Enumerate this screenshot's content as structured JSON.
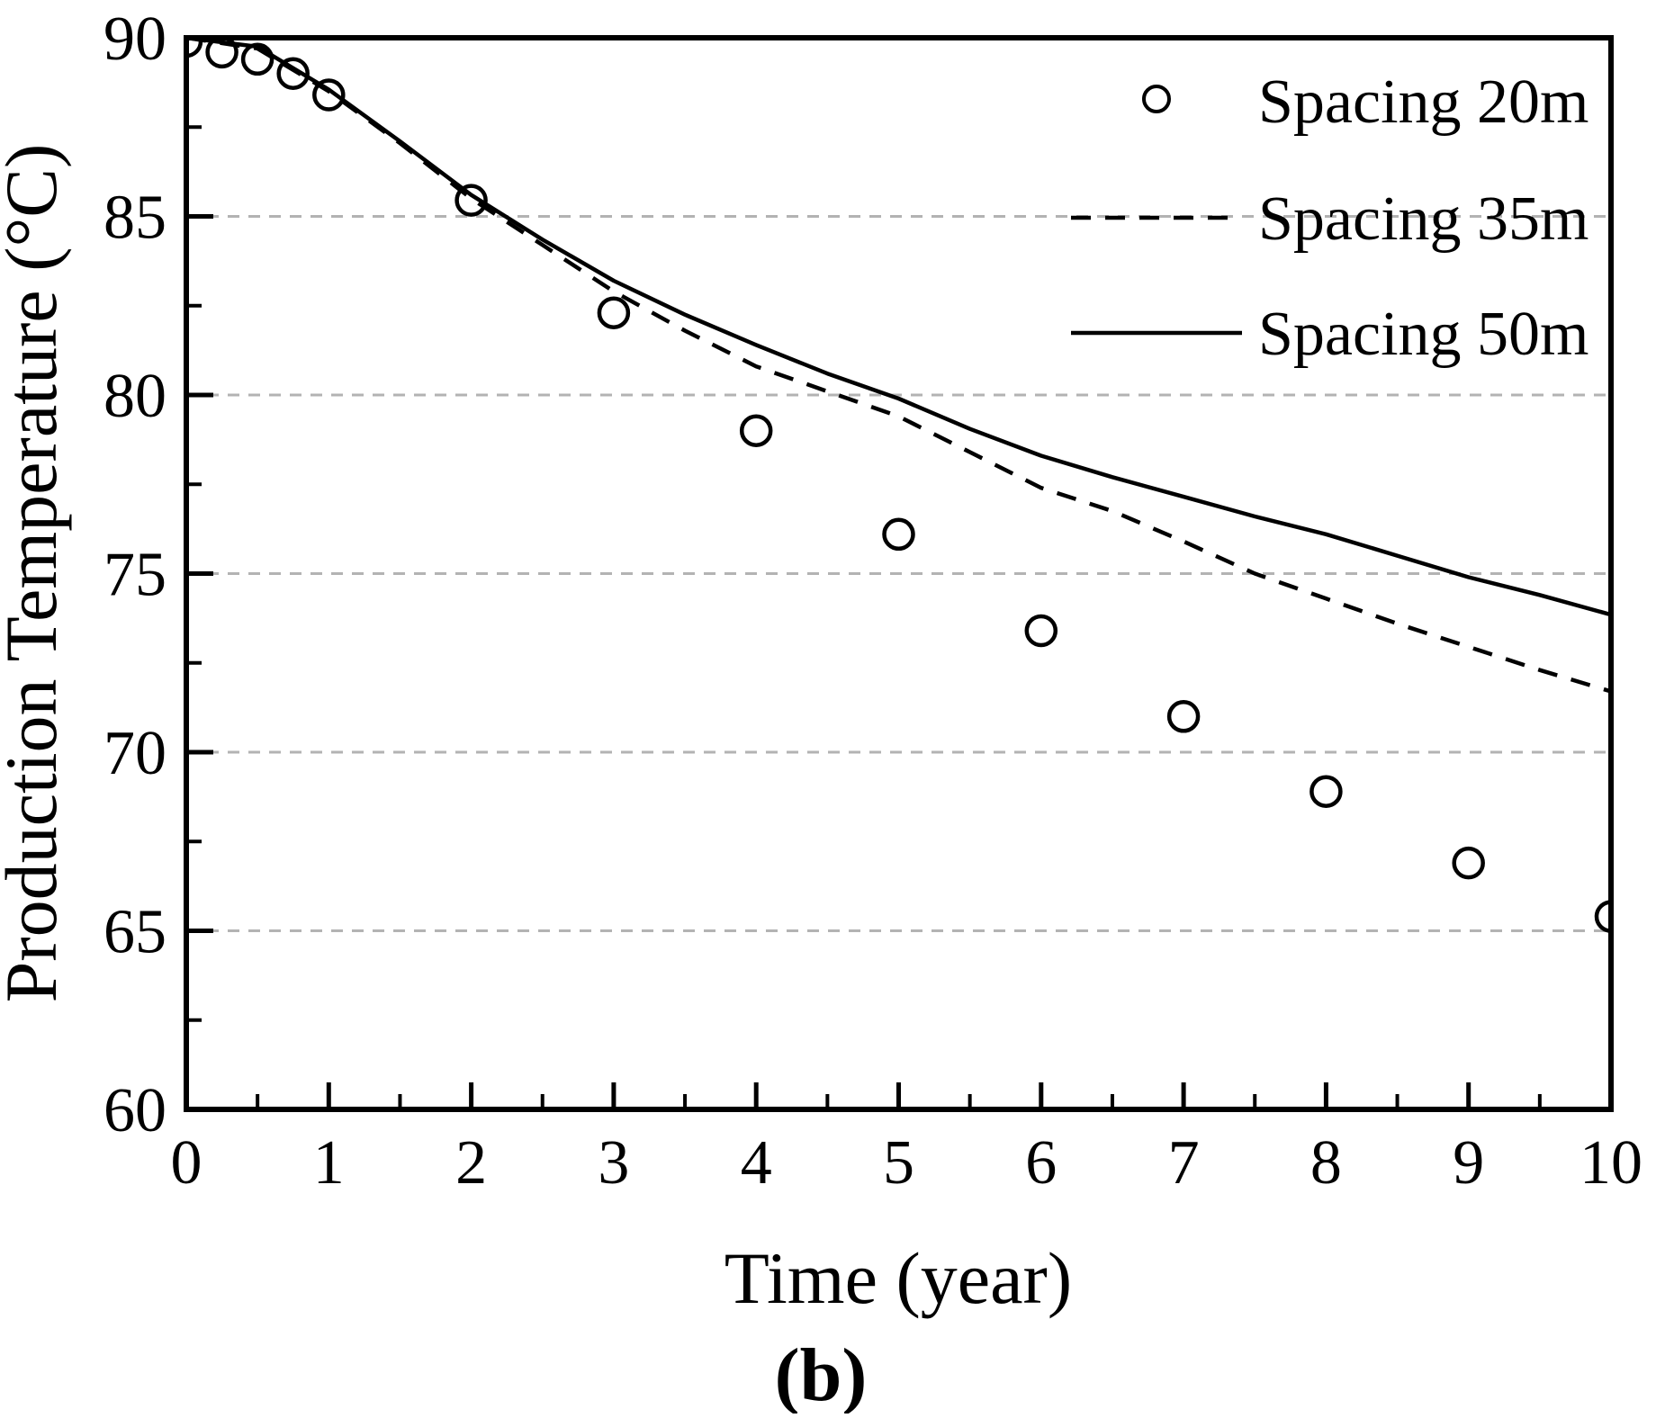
{
  "figure": {
    "caption": "(b)",
    "background": "#ffffff"
  },
  "chart_data": {
    "type": "line",
    "title": "",
    "xlabel": "Time (year)",
    "ylabel": "Production Temperature (°C)",
    "xlim": [
      0,
      10
    ],
    "ylim": [
      60,
      90
    ],
    "x_major_ticks": [
      0,
      1,
      2,
      3,
      4,
      5,
      6,
      7,
      8,
      9,
      10
    ],
    "x_minor_ticks": [
      0.5,
      1.5,
      2.5,
      3.5,
      4.5,
      5.5,
      6.5,
      7.5,
      8.5,
      9.5
    ],
    "y_major_ticks": [
      60,
      65,
      70,
      75,
      80,
      85,
      90
    ],
    "y_minor_ticks": [
      62.5,
      67.5,
      72.5,
      77.5,
      82.5,
      87.5
    ],
    "gridlines_y": [
      65,
      70,
      75,
      80,
      85
    ],
    "grid_on": true,
    "grid_color": "#b3b3b3",
    "axis_color": "#000000",
    "legend_position": "top-right",
    "series": [
      {
        "name": "Spacing 20m",
        "type": "scatter",
        "marker": "circle",
        "color": "#000000",
        "points": [
          [
            0,
            89.9
          ],
          [
            0.25,
            89.6
          ],
          [
            0.5,
            89.4
          ],
          [
            0.75,
            89.0
          ],
          [
            1,
            88.4
          ],
          [
            2,
            85.45
          ],
          [
            3,
            82.3
          ],
          [
            4,
            79.0
          ],
          [
            5,
            76.1
          ],
          [
            6,
            73.4
          ],
          [
            7,
            71.0
          ],
          [
            8,
            68.9
          ],
          [
            9,
            66.9
          ],
          [
            10,
            65.4
          ]
        ]
      },
      {
        "name": "Spacing 35m",
        "type": "line",
        "style": "dashed",
        "color": "#000000",
        "points": [
          [
            0,
            90.0
          ],
          [
            0.5,
            89.7
          ],
          [
            1,
            88.5
          ],
          [
            1.5,
            87.05
          ],
          [
            2,
            85.5
          ],
          [
            2.5,
            84.2
          ],
          [
            3,
            82.9
          ],
          [
            3.5,
            81.8
          ],
          [
            4,
            80.8
          ],
          [
            4.5,
            80.1
          ],
          [
            5,
            79.4
          ],
          [
            5.5,
            78.4
          ],
          [
            6,
            77.4
          ],
          [
            6.5,
            76.75
          ],
          [
            7,
            75.9
          ],
          [
            7.5,
            75.0
          ],
          [
            8,
            74.3
          ],
          [
            8.5,
            73.6
          ],
          [
            9,
            72.95
          ],
          [
            9.5,
            72.3
          ],
          [
            10,
            71.7
          ]
        ]
      },
      {
        "name": "Spacing 50m",
        "type": "line",
        "style": "solid",
        "color": "#000000",
        "points": [
          [
            0,
            90.0
          ],
          [
            0.5,
            89.75
          ],
          [
            1,
            88.55
          ],
          [
            1.5,
            87.1
          ],
          [
            2,
            85.6
          ],
          [
            2.5,
            84.35
          ],
          [
            3,
            83.2
          ],
          [
            3.5,
            82.25
          ],
          [
            4,
            81.4
          ],
          [
            4.5,
            80.6
          ],
          [
            5,
            79.9
          ],
          [
            5.5,
            79.05
          ],
          [
            6,
            78.3
          ],
          [
            6.5,
            77.7
          ],
          [
            7,
            77.15
          ],
          [
            7.5,
            76.6
          ],
          [
            8,
            76.1
          ],
          [
            8.5,
            75.5
          ],
          [
            9,
            74.9
          ],
          [
            9.5,
            74.4
          ],
          [
            10,
            73.85
          ]
        ]
      }
    ]
  }
}
